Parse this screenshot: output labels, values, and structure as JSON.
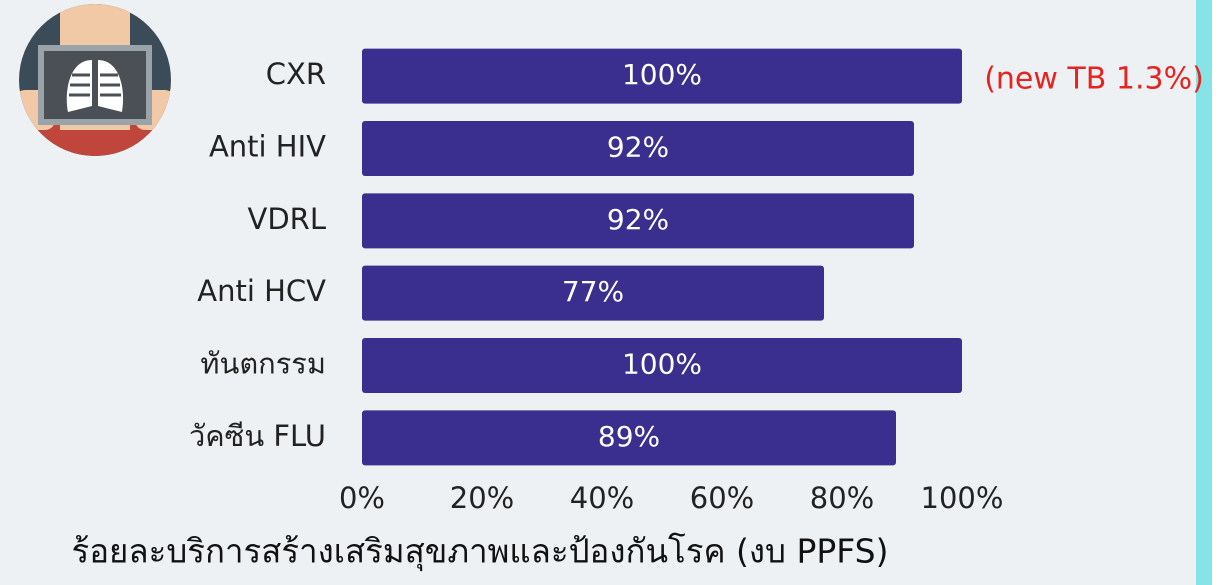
{
  "chart_data": {
    "type": "bar",
    "orientation": "horizontal",
    "title": "ร้อยละบริการสร้างเสริมสุขภาพและป้องกันโรค (งบ PPFS)",
    "annotation": "(new TB 1.3%)",
    "categories": [
      "CXR",
      "Anti HIV",
      "VDRL",
      "Anti HCV",
      "ทันตกรรม",
      "วัคซีน FLU"
    ],
    "values": [
      100,
      92,
      92,
      77,
      100,
      89
    ],
    "value_labels": [
      "100%",
      "92%",
      "92%",
      "77%",
      "100%",
      "89%"
    ],
    "color": "#3a2e8e",
    "xlim": [
      0,
      100
    ],
    "xticks": [
      {
        "value": 0,
        "label": "0%"
      },
      {
        "value": 20,
        "label": "20%"
      },
      {
        "value": 40,
        "label": "40%"
      },
      {
        "value": 60,
        "label": "60%"
      },
      {
        "value": 80,
        "label": "80%"
      },
      {
        "value": 100,
        "label": "100%"
      }
    ],
    "grid": false
  }
}
